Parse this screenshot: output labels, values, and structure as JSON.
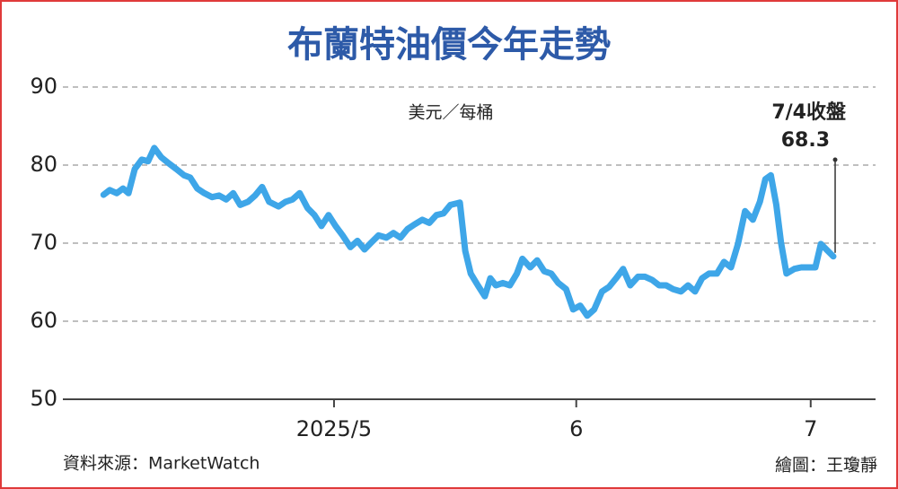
{
  "chart_data": {
    "type": "line",
    "title": "布蘭特油價今年走勢",
    "unit": "美元／每桶",
    "source": "資料來源：MarketWatch",
    "credit": "繪圖：王瓊靜",
    "annotation": "7/4收盤",
    "color": "#3ea6e8",
    "grid": true,
    "xlim": [
      86.3,
      190.3
    ],
    "xticks": [
      {
        "value": 121,
        "label": "2025/5"
      },
      {
        "value": 152,
        "label": "6"
      },
      {
        "value": 182,
        "label": "7"
      }
    ],
    "ylim": [
      50,
      90
    ],
    "yticks": [
      50,
      60,
      70,
      80,
      90
    ],
    "x": [
      91.5,
      92.3,
      93.2,
      94.0,
      94.7,
      95.5,
      96.4,
      97.2,
      98.0,
      98.9,
      99.9,
      100.8,
      101.8,
      102.6,
      103.5,
      104.4,
      105.4,
      106.3,
      107.2,
      108.1,
      109.0,
      110.0,
      110.9,
      111.8,
      112.7,
      113.9,
      114.8,
      115.7,
      116.6,
      117.6,
      118.5,
      119.4,
      120.3,
      121.2,
      122.1,
      123.1,
      124.0,
      124.9,
      125.8,
      126.7,
      127.7,
      128.6,
      129.5,
      130.4,
      131.3,
      132.3,
      133.2,
      134.1,
      135.0,
      135.9,
      137.1,
      137.8,
      138.5,
      139.4,
      140.3,
      141.0,
      141.7,
      142.6,
      143.5,
      144.4,
      145.1,
      146.1,
      147.0,
      147.9,
      148.8,
      149.7,
      150.7,
      151.6,
      152.5,
      153.4,
      154.3,
      155.3,
      156.2,
      157.1,
      158.0,
      158.9,
      159.9,
      160.8,
      161.7,
      162.6,
      163.5,
      164.4,
      165.4,
      166.3,
      167.2,
      168.1,
      169.0,
      170.0,
      170.9,
      171.8,
      172.7,
      173.6,
      174.6,
      175.5,
      176.2,
      176.9,
      177.6,
      178.2,
      178.9,
      179.9,
      180.8,
      181.7,
      182.6,
      183.3,
      184.0,
      184.9
    ],
    "values": [
      76.2,
      76.8,
      76.4,
      77.0,
      76.4,
      79.5,
      80.7,
      80.5,
      82.2,
      81.0,
      80.2,
      79.5,
      78.7,
      78.4,
      77.0,
      76.4,
      75.9,
      76.1,
      75.6,
      76.4,
      74.9,
      75.3,
      76.1,
      77.2,
      75.3,
      74.7,
      75.3,
      75.6,
      76.4,
      74.5,
      73.6,
      72.2,
      73.6,
      72.2,
      71.0,
      69.5,
      70.3,
      69.2,
      70.1,
      71.0,
      70.7,
      71.3,
      70.7,
      71.8,
      72.4,
      73.0,
      72.6,
      73.6,
      73.8,
      74.9,
      75.2,
      69.0,
      66.1,
      64.6,
      63.2,
      65.5,
      64.6,
      64.9,
      64.6,
      66.1,
      68.0,
      66.9,
      67.8,
      66.4,
      66.1,
      64.9,
      64.1,
      61.5,
      62.0,
      60.7,
      61.5,
      63.8,
      64.4,
      65.5,
      66.7,
      64.6,
      65.7,
      65.7,
      65.3,
      64.6,
      64.6,
      64.1,
      63.8,
      64.6,
      63.8,
      65.5,
      66.1,
      66.1,
      67.6,
      66.9,
      69.9,
      74.1,
      73.0,
      75.3,
      78.2,
      78.7,
      74.9,
      70.1,
      66.1,
      66.7,
      66.9,
      66.9,
      66.9,
      69.9,
      69.2,
      68.3
    ]
  }
}
